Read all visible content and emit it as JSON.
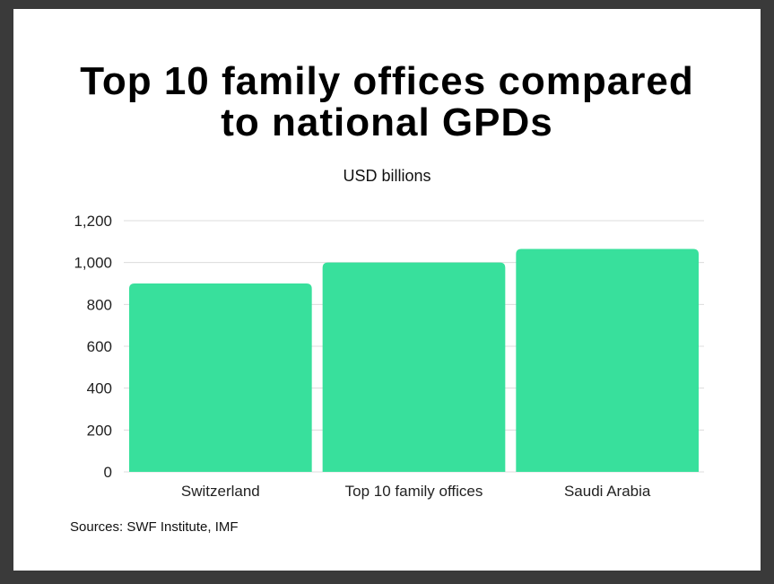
{
  "chart_data": {
    "type": "bar",
    "title": "Top 10 family offices compared to national GPDs",
    "subtitle": "USD billions",
    "categories": [
      "Switzerland",
      "Top 10 family offices",
      "Saudi Arabia"
    ],
    "values": [
      900,
      1000,
      1065
    ],
    "color": "#38e09c",
    "ylim": [
      0,
      1200
    ],
    "yticks": [
      0,
      200,
      400,
      600,
      800,
      {
        "value": 1000,
        "label": "1,000"
      },
      {
        "value": 1200,
        "label": "1,200"
      }
    ],
    "grid": true,
    "source": "Sources: SWF Institute, IMF"
  }
}
